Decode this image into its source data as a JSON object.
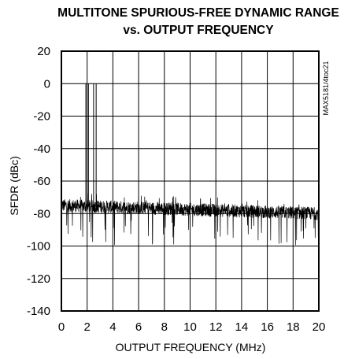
{
  "chart_data": {
    "type": "line",
    "title_lines": [
      "MULTITONE SPURIOUS-FREE DYNAMIC RANGE",
      "vs. OUTPUT FREQUENCY"
    ],
    "xlabel": "OUTPUT FREQUENCY (MHz)",
    "ylabel": "SFDR (dBc)",
    "side_note": "MAX5181/4toc21",
    "xlim": [
      0,
      20
    ],
    "ylim": [
      -140,
      20
    ],
    "x_ticks": [
      0,
      2,
      4,
      6,
      8,
      10,
      12,
      14,
      16,
      18,
      20
    ],
    "y_ticks": [
      20,
      0,
      -20,
      -40,
      -60,
      -80,
      -100,
      -120,
      -140
    ],
    "grid": true,
    "tones": [
      {
        "x": 1.9,
        "y": 0
      },
      {
        "x": 2.1,
        "y": 0
      },
      {
        "x": 2.5,
        "y": 0
      },
      {
        "x": 2.7,
        "y": 0
      }
    ],
    "noise_floor": {
      "start": -75,
      "end": -80,
      "spread": 8,
      "spur_min": -100
    }
  }
}
